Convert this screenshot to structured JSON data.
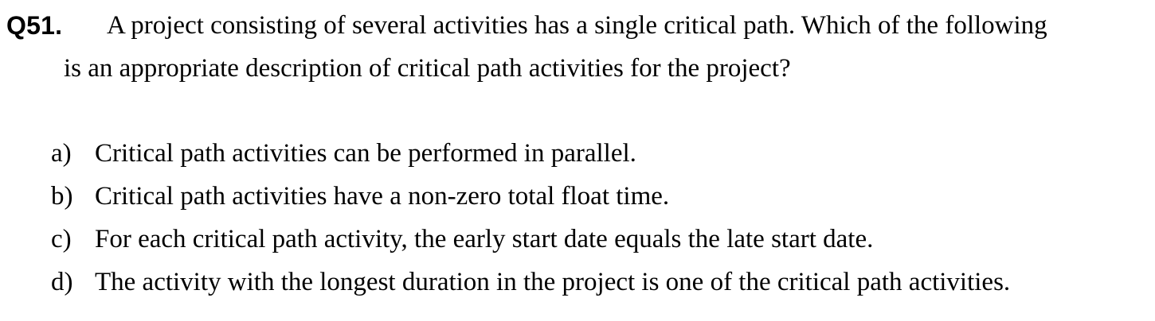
{
  "question": {
    "number": "Q51.",
    "stem_line_1": "A project consisting of several activities has a single critical path. Which of the following",
    "stem_line_2": "is an appropriate description of critical path activities for the project?"
  },
  "options": [
    {
      "letter": "a)",
      "text": "Critical path activities can be performed in parallel."
    },
    {
      "letter": "b)",
      "text": "Critical path activities have a non-zero total float time."
    },
    {
      "letter": "c)",
      "text": "For each critical path activity, the early start date equals the late start date."
    },
    {
      "letter": "d)",
      "text": "The activity with the longest duration in the project is one of the critical path activities."
    }
  ]
}
